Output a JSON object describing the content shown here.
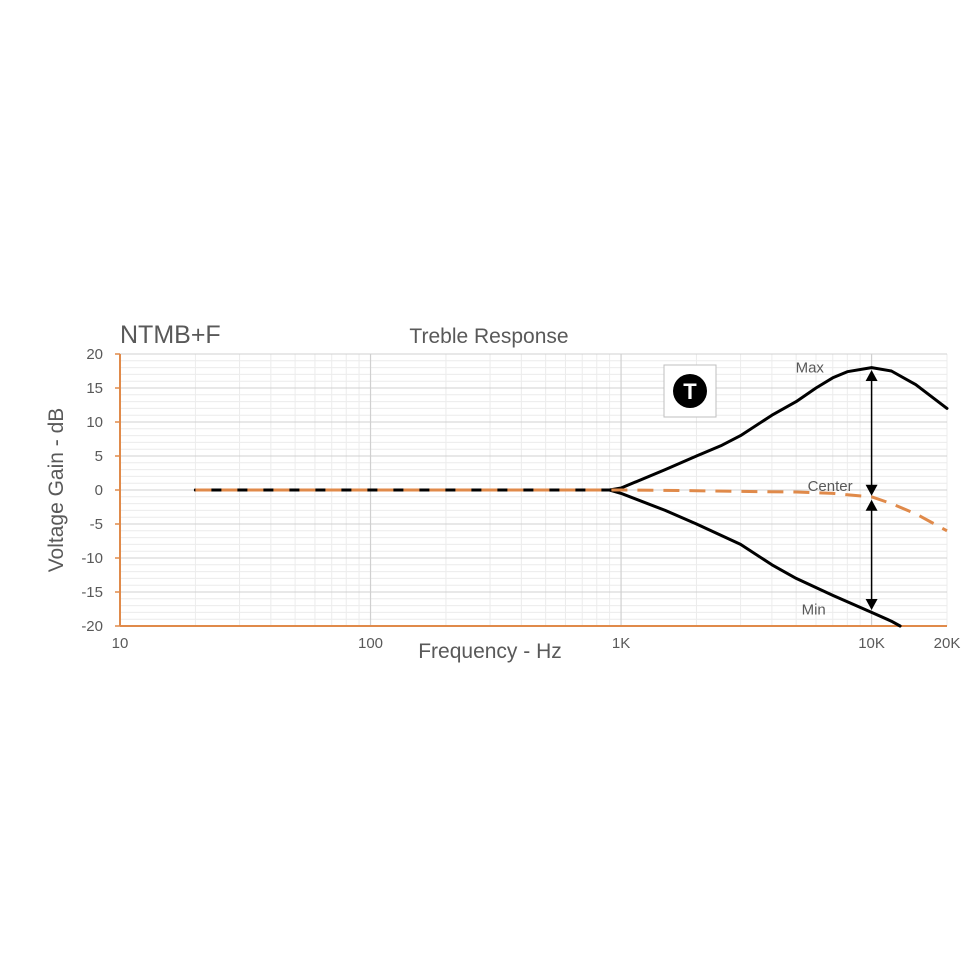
{
  "brand": "NTMB+F",
  "badge": {
    "letter": "T",
    "icon": "treble-badge-icon"
  },
  "colors": {
    "max_min": "#000000",
    "center": "#e08a4a",
    "axis": "#e08a4a",
    "grid_major": "#d0d0d0",
    "grid_minor": "#ececec",
    "text": "#595959"
  },
  "chart_data": {
    "type": "line",
    "title": "Treble Response",
    "xlabel": "Frequency - Hz",
    "ylabel": "Voltage Gain - dB",
    "xscale": "log",
    "xlim": [
      10,
      20000
    ],
    "ylim": [
      -20,
      20
    ],
    "grid": true,
    "x_ticks": [
      10,
      100,
      1000,
      10000,
      20000
    ],
    "x_tick_labels": [
      "10",
      "100",
      "1K",
      "10K",
      "20K"
    ],
    "y_ticks": [
      20,
      15,
      10,
      5,
      0,
      -5,
      -10,
      -15,
      -20
    ],
    "y_tick_labels": [
      "20",
      "15",
      "10",
      "5",
      "0",
      "-5",
      "-10",
      "-15",
      "-20"
    ],
    "series": [
      {
        "name": "Max",
        "color": "#000000",
        "dash": "solid",
        "points": [
          [
            20,
            0
          ],
          [
            100,
            0
          ],
          [
            500,
            0
          ],
          [
            900,
            0
          ],
          [
            1000,
            0.3
          ],
          [
            1500,
            3
          ],
          [
            2000,
            5
          ],
          [
            2500,
            6.5
          ],
          [
            3000,
            8
          ],
          [
            4000,
            11
          ],
          [
            5000,
            13
          ],
          [
            6000,
            15
          ],
          [
            7000,
            16.5
          ],
          [
            8000,
            17.4
          ],
          [
            10000,
            18
          ],
          [
            12000,
            17.5
          ],
          [
            15000,
            15.5
          ],
          [
            20000,
            12
          ]
        ]
      },
      {
        "name": "Center",
        "color": "#e08a4a",
        "dash": "dashed",
        "points": [
          [
            20,
            0
          ],
          [
            100,
            0
          ],
          [
            500,
            0
          ],
          [
            1000,
            0
          ],
          [
            2000,
            -0.1
          ],
          [
            3000,
            -0.2
          ],
          [
            5000,
            -0.3
          ],
          [
            7000,
            -0.5
          ],
          [
            8000,
            -0.7
          ],
          [
            10000,
            -1
          ],
          [
            12000,
            -2
          ],
          [
            15000,
            -3.5
          ],
          [
            20000,
            -6
          ]
        ]
      },
      {
        "name": "Min",
        "color": "#000000",
        "dash": "solid",
        "points": [
          [
            20,
            0
          ],
          [
            100,
            0
          ],
          [
            500,
            0
          ],
          [
            900,
            0
          ],
          [
            1000,
            -0.5
          ],
          [
            1500,
            -3
          ],
          [
            2000,
            -5
          ],
          [
            3000,
            -8
          ],
          [
            4000,
            -11
          ],
          [
            5000,
            -13
          ],
          [
            7000,
            -15.5
          ],
          [
            10000,
            -18
          ],
          [
            12000,
            -19.3
          ],
          [
            13000,
            -20
          ]
        ]
      }
    ],
    "annotations": [
      {
        "text": "Max",
        "x": 10000,
        "y": 18
      },
      {
        "text": "Center",
        "x": 10000,
        "y": -1
      },
      {
        "text": "Min",
        "x": 10000,
        "y": -18
      }
    ]
  }
}
